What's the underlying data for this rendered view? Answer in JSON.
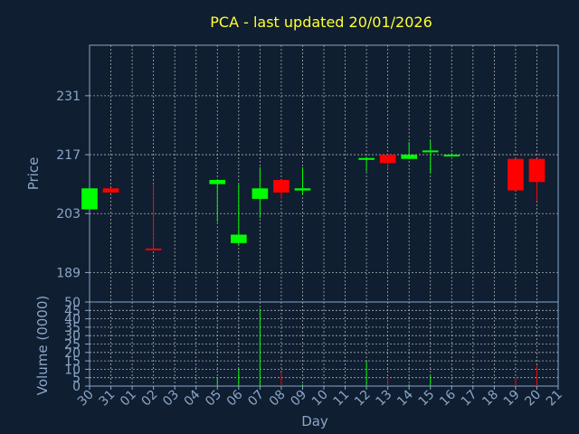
{
  "title": "PCA - last updated 20/01/2026",
  "colors": {
    "background": "#0f1e30",
    "title": "#ffff33",
    "axis_text": "#8aa6c8",
    "grid": "#c8c8c8",
    "up": "#00ff00",
    "down": "#ff0000",
    "frame": "#8aa6c8"
  },
  "chart_data": [
    {
      "type": "candlestick",
      "ylabel": "Price",
      "ylim": [
        182,
        243
      ],
      "yticks": [
        189,
        203,
        217,
        231
      ],
      "grid": true,
      "x_categories": [
        "30",
        "31",
        "01",
        "02",
        "03",
        "04",
        "05",
        "06",
        "07",
        "08",
        "09",
        "10",
        "11",
        "12",
        "13",
        "14",
        "15",
        "16",
        "17",
        "18",
        "19",
        "20",
        "21"
      ],
      "candles": [
        {
          "day": "30",
          "open": 204.0,
          "high": 209.0,
          "low": 204.0,
          "close": 209.0
        },
        {
          "day": "31",
          "open": 209.0,
          "high": 209.0,
          "low": 208.0,
          "close": 208.0
        },
        {
          "day": "02",
          "open": 194.7,
          "high": 210.0,
          "low": 194.5,
          "close": 194.5
        },
        {
          "day": "05",
          "open": 210.0,
          "high": 211.0,
          "low": 201.0,
          "close": 211.0
        },
        {
          "day": "06",
          "open": 196.0,
          "high": 210.0,
          "low": 195.3,
          "close": 198.0
        },
        {
          "day": "07",
          "open": 206.5,
          "high": 214.0,
          "low": 202.0,
          "close": 209.0
        },
        {
          "day": "08",
          "open": 211.0,
          "high": 211.0,
          "low": 206.5,
          "close": 208.0
        },
        {
          "day": "09",
          "open": 208.5,
          "high": 214.0,
          "low": 207.5,
          "close": 209.0
        },
        {
          "day": "12",
          "open": 215.8,
          "high": 216.5,
          "low": 213.0,
          "close": 216.2
        },
        {
          "day": "13",
          "open": 217.0,
          "high": 217.0,
          "low": 213.5,
          "close": 215.0
        },
        {
          "day": "14",
          "open": 216.0,
          "high": 220.0,
          "low": 216.0,
          "close": 217.0
        },
        {
          "day": "15",
          "open": 217.6,
          "high": 220.3,
          "low": 212.5,
          "close": 218.0
        },
        {
          "day": "16",
          "open": 217.0,
          "high": 217.4,
          "low": 216.6,
          "close": 217.0
        },
        {
          "day": "19",
          "open": 216.0,
          "high": 216.0,
          "low": 208.5,
          "close": 208.5
        },
        {
          "day": "20",
          "open": 216.0,
          "high": 216.0,
          "low": 206.0,
          "close": 210.5
        }
      ]
    },
    {
      "type": "bar",
      "ylabel": "Volume (0000)",
      "xlabel": "Day",
      "ylim": [
        0,
        50
      ],
      "yticks": [
        0,
        5,
        10,
        15,
        20,
        25,
        30,
        35,
        40,
        45,
        50
      ],
      "grid": true,
      "x_categories": [
        "30",
        "31",
        "01",
        "02",
        "03",
        "04",
        "05",
        "06",
        "07",
        "08",
        "09",
        "10",
        "11",
        "12",
        "13",
        "14",
        "15",
        "16",
        "17",
        "18",
        "19",
        "20",
        "21"
      ],
      "bars": [
        {
          "day": "30",
          "value": 0.5,
          "direction": "up"
        },
        {
          "day": "31",
          "value": 0.3,
          "direction": "down"
        },
        {
          "day": "02",
          "value": 0.6,
          "direction": "down"
        },
        {
          "day": "05",
          "value": 5,
          "direction": "up"
        },
        {
          "day": "06",
          "value": 10,
          "direction": "up"
        },
        {
          "day": "07",
          "value": 46,
          "direction": "up"
        },
        {
          "day": "08",
          "value": 8,
          "direction": "down"
        },
        {
          "day": "09",
          "value": 1,
          "direction": "up"
        },
        {
          "day": "12",
          "value": 15,
          "direction": "up"
        },
        {
          "day": "13",
          "value": 5,
          "direction": "down"
        },
        {
          "day": "14",
          "value": 1,
          "direction": "up"
        },
        {
          "day": "15",
          "value": 6,
          "direction": "up"
        },
        {
          "day": "16",
          "value": 0.5,
          "direction": "up"
        },
        {
          "day": "19",
          "value": 5,
          "direction": "down"
        },
        {
          "day": "20",
          "value": 12,
          "direction": "down"
        }
      ]
    }
  ]
}
